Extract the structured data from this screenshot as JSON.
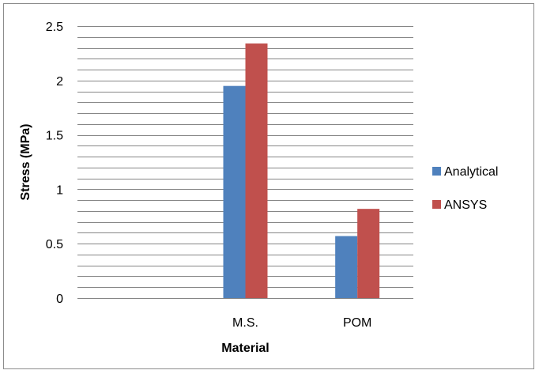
{
  "chart_data": {
    "type": "bar",
    "categories": [
      "",
      "M.S.",
      "POM"
    ],
    "series": [
      {
        "name": "Analytical",
        "values": [
          null,
          1.95,
          0.57
        ],
        "color": "#4f81bd"
      },
      {
        "name": "ANSYS",
        "values": [
          null,
          2.34,
          0.82
        ],
        "color": "#c0504d"
      }
    ],
    "title": "",
    "xlabel": "Material",
    "ylabel": "Stress (MPa)",
    "ylim": [
      0,
      2.5
    ],
    "yticks": [
      "0",
      "0.5",
      "1",
      "1.5",
      "2",
      "2.5"
    ],
    "minor_gridlines": true,
    "legend_position": "right",
    "gridline_color": "#868686"
  }
}
